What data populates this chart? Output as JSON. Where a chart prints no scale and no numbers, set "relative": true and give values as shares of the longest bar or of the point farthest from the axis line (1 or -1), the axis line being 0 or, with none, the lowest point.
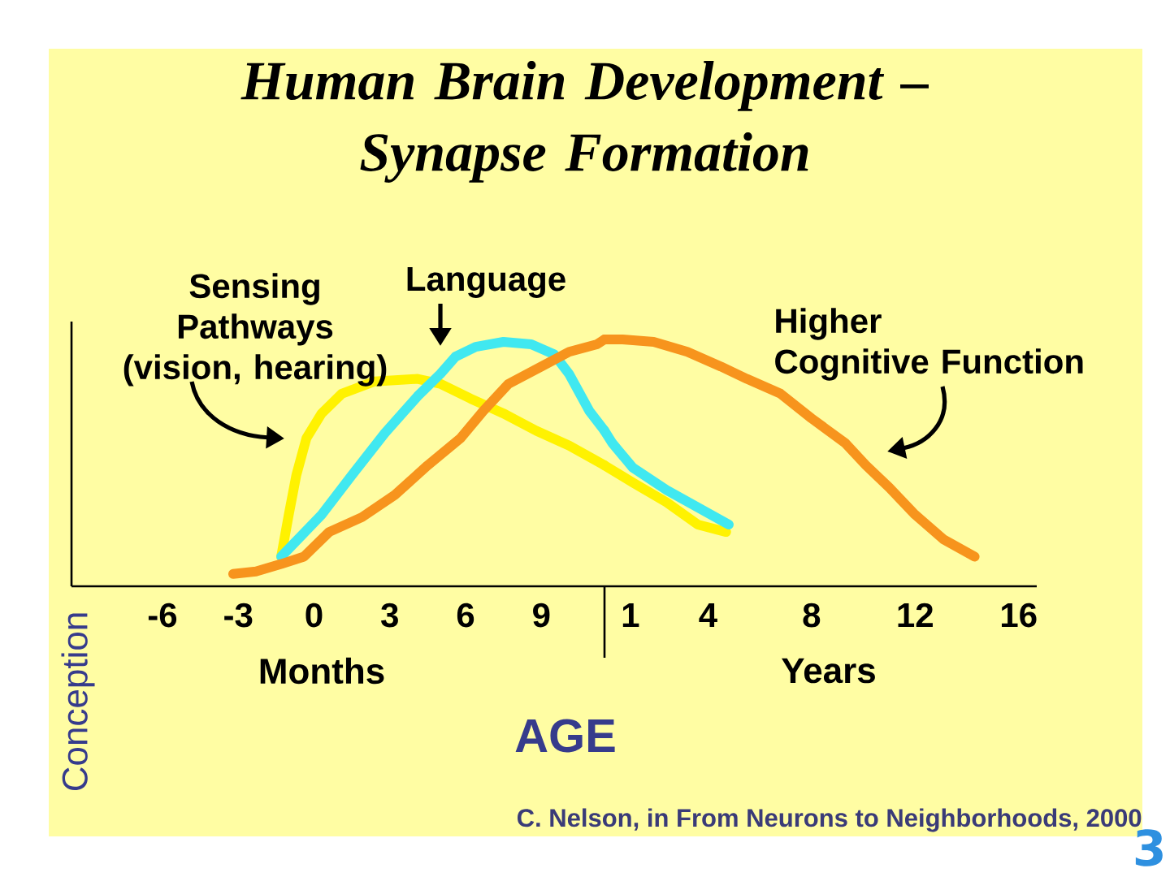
{
  "chart_data": [
    {
      "type": "line",
      "title": "Human Brain Development – Synapse Formation",
      "xlabel": "Months",
      "relative": true,
      "xlim": [
        -9.6,
        11.5
      ],
      "xticks": [
        -6,
        -3,
        0,
        3,
        6,
        9
      ],
      "tick_labels": "x",
      "series": [
        {
          "name": "Sensing Pathways (vision, hearing)",
          "color": "#fff200",
          "x": [
            -1.3,
            -1.0,
            -0.7,
            -0.3,
            0.3,
            1.1,
            2.4,
            4.1,
            5.0,
            6.2,
            7.5,
            8.8,
            10.1,
            11.5
          ],
          "values": [
            0.12,
            0.29,
            0.45,
            0.6,
            0.7,
            0.78,
            0.83,
            0.84,
            0.82,
            0.76,
            0.7,
            0.63,
            0.57,
            0.49
          ]
        },
        {
          "name": "Language",
          "color": "#40e8f0",
          "x": [
            -1.3,
            0.3,
            1.5,
            2.8,
            4.1,
            5.0,
            5.6,
            6.4,
            7.5,
            8.6,
            9.5,
            10.1,
            10.9,
            11.5
          ],
          "values": [
            0.12,
            0.29,
            0.45,
            0.62,
            0.77,
            0.86,
            0.93,
            0.97,
            0.99,
            0.98,
            0.94,
            0.86,
            0.71,
            0.63
          ]
        },
        {
          "color": "#f7941d",
          "x": [
            -3.2,
            -2.3,
            -1.3,
            -0.4,
            0.6,
            1.9,
            3.2,
            4.5,
            5.8,
            6.7,
            7.7,
            9.0,
            10.1,
            11.2,
            11.5
          ],
          "values": [
            0.05,
            0.06,
            0.09,
            0.12,
            0.22,
            0.28,
            0.37,
            0.49,
            0.6,
            0.71,
            0.82,
            0.89,
            0.95,
            0.98,
            1.0
          ]
        }
      ],
      "annotations": [
        "AGE",
        "Conception"
      ]
    },
    {
      "type": "line",
      "xlabel": "Years",
      "relative": true,
      "xlim": [
        0,
        16.7
      ],
      "xticks": [
        1,
        4,
        8,
        12,
        16
      ],
      "tick_labels": "x",
      "series": [
        {
          "color": "#fff200",
          "x": [
            0,
            1.1,
            2.4,
            3.6,
            4.7
          ],
          "values": [
            0.49,
            0.42,
            0.34,
            0.25,
            0.22
          ]
        },
        {
          "color": "#40e8f0",
          "x": [
            0,
            0.3,
            1.1,
            2.4,
            3.6,
            4.8
          ],
          "values": [
            0.63,
            0.58,
            0.48,
            0.39,
            0.32,
            0.25
          ]
        },
        {
          "name": "Higher Cognitive Function",
          "color": "#f7941d",
          "x": [
            0,
            0.7,
            1.9,
            3.2,
            4.5,
            5.5,
            6.8,
            8.0,
            9.3,
            10.1,
            11.0,
            12.0,
            13.1,
            14.3
          ],
          "values": [
            1.0,
            1.0,
            0.99,
            0.95,
            0.89,
            0.84,
            0.78,
            0.68,
            0.58,
            0.49,
            0.4,
            0.29,
            0.19,
            0.12
          ]
        }
      ],
      "annotations": [
        "C. Nelson, in From Neurons to Neighborhoods, 2000",
        "3"
      ]
    }
  ]
}
